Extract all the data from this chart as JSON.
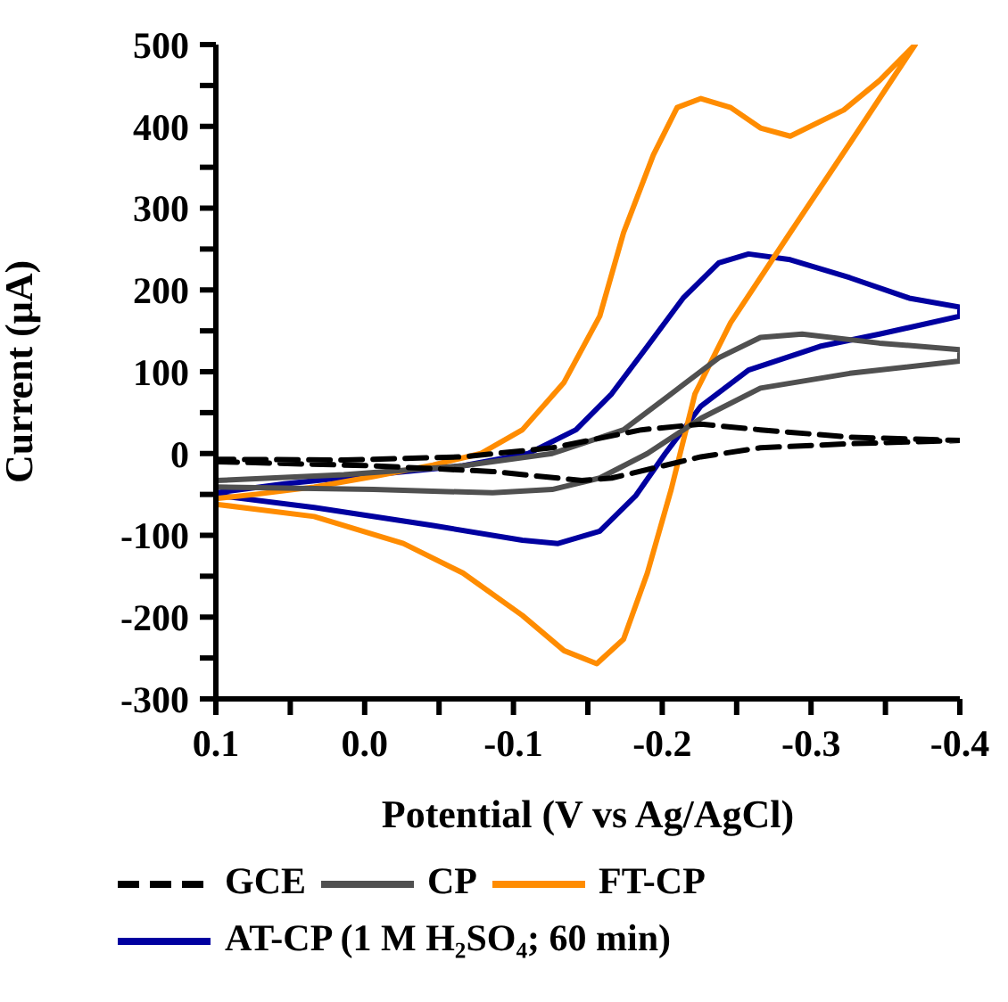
{
  "chart_data": {
    "type": "line",
    "xlabel": "Potential (V vs Ag/AgCl)",
    "ylabel": "Current (μA)",
    "xlim": [
      0.1,
      -0.4
    ],
    "xticks": [
      0.1,
      {
        "value": 0.05,
        "label": null
      },
      {
        "value": 0,
        "label": "0.0"
      },
      {
        "value": -0.05,
        "label": null
      },
      -0.1,
      {
        "value": -0.15,
        "label": null
      },
      -0.2,
      {
        "value": -0.25,
        "label": null
      },
      -0.3,
      {
        "value": -0.35,
        "label": null
      },
      -0.4
    ],
    "ylim": [
      -300,
      500
    ],
    "yticks": [
      -300,
      {
        "value": -250,
        "label": null
      },
      -200,
      {
        "value": -150,
        "label": null
      },
      -100,
      {
        "value": -50,
        "label": null
      },
      0,
      {
        "value": 50,
        "label": null
      },
      100,
      {
        "value": 150,
        "label": null
      },
      200,
      {
        "value": 250,
        "label": null
      },
      300,
      {
        "value": 350,
        "label": null
      },
      400,
      {
        "value": 450,
        "label": null
      },
      500
    ],
    "grid": false,
    "legend": "bottom",
    "marker": "none",
    "series": [
      {
        "name": "GCE",
        "color": "#000000",
        "line_style": "dashed",
        "x": [
          0.1,
          -0.006,
          -0.086,
          -0.146,
          -0.166,
          -0.226,
          -0.266,
          -0.326,
          -0.4,
          -0.326,
          -0.266,
          -0.226,
          -0.186,
          -0.126,
          -0.066,
          0.014,
          0.1
        ],
        "values": [
          -10,
          -15,
          -22,
          -33,
          -30,
          -4,
          7,
          12,
          16,
          20,
          29,
          36,
          29,
          7,
          -4,
          -8,
          -7
        ]
      },
      {
        "name": "CP",
        "color": "#505050",
        "line_style": "solid",
        "x": [
          0.1,
          -0.006,
          -0.086,
          -0.126,
          -0.158,
          -0.19,
          -0.226,
          -0.266,
          -0.326,
          -0.4,
          -0.4,
          -0.346,
          -0.294,
          -0.266,
          -0.238,
          -0.206,
          -0.174,
          -0.126,
          -0.066,
          0.014,
          0.1
        ],
        "values": [
          -41,
          -44,
          -48,
          -44,
          -30,
          0,
          43,
          80,
          98,
          113,
          127,
          135,
          146,
          142,
          117,
          73,
          29,
          0,
          -15,
          -26,
          -33
        ]
      },
      {
        "name": "FT-CP",
        "color": "#ff8c00",
        "line_style": "solid",
        "x": [
          0.1,
          0.034,
          -0.026,
          -0.066,
          -0.106,
          -0.134,
          -0.156,
          -0.174,
          -0.19,
          -0.206,
          -0.222,
          -0.246,
          -0.286,
          -0.326,
          -0.37,
          -0.346,
          -0.322,
          -0.286,
          -0.266,
          -0.246,
          -0.226,
          -0.21,
          -0.194,
          -0.174,
          -0.158,
          -0.134,
          -0.106,
          -0.078,
          -0.046,
          -0.006,
          0.034,
          0.074,
          0.1
        ],
        "values": [
          -62,
          -77,
          -110,
          -146,
          -198,
          -241,
          -257,
          -227,
          -146,
          -44,
          73,
          160,
          270,
          379,
          500,
          456,
          420,
          388,
          398,
          423,
          434,
          423,
          365,
          270,
          168,
          87,
          29,
          0,
          -14,
          -28,
          -41,
          -50,
          -55
        ]
      },
      {
        "name": "AT-CP (1 M H₂SO₄; 60 min)",
        "color": "#0000a0",
        "line_style": "solid",
        "x": [
          0.1,
          0.034,
          -0.046,
          -0.106,
          -0.13,
          -0.158,
          -0.182,
          -0.202,
          -0.226,
          -0.258,
          -0.306,
          -0.346,
          -0.4,
          -0.4,
          -0.366,
          -0.326,
          -0.286,
          -0.258,
          -0.238,
          -0.214,
          -0.19,
          -0.166,
          -0.142,
          -0.11,
          -0.066,
          -0.006,
          0.054,
          0.1
        ],
        "values": [
          -51,
          -66,
          -88,
          -106,
          -110,
          -95,
          -52,
          0,
          58,
          102,
          131,
          146,
          168,
          179,
          190,
          215,
          237,
          244,
          233,
          190,
          131,
          73,
          29,
          0,
          -15,
          -26,
          -37,
          -48
        ]
      }
    ]
  }
}
